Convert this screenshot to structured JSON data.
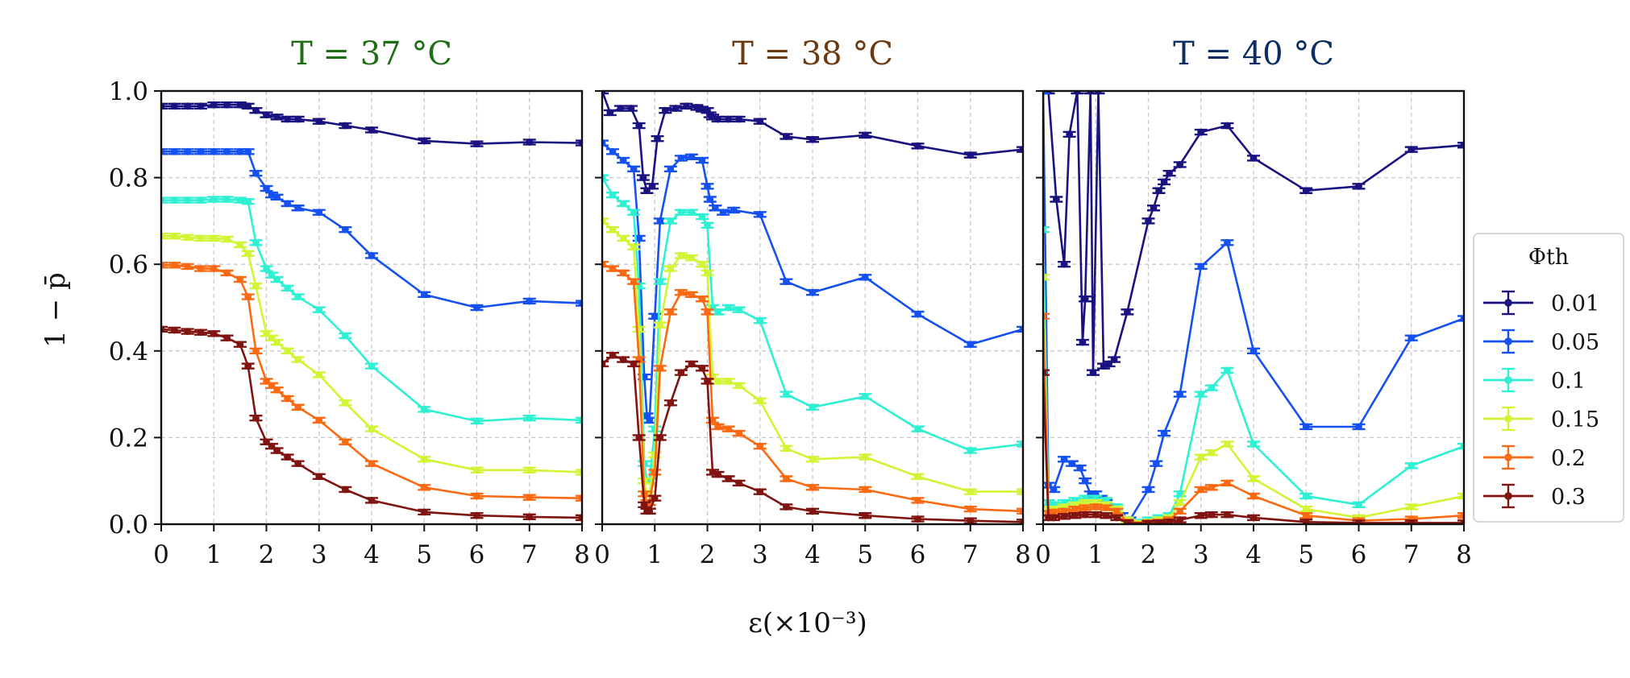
{
  "colors": {
    "0.01": "#1a1280",
    "0.05": "#1550f0",
    "0.1": "#2ef0d2",
    "0.15": "#d0f535",
    "0.2": "#fb6a12",
    "0.3": "#801410"
  },
  "chart_data": {
    "type": "line",
    "shared_ylabel": "1 − p̄",
    "shared_xlabel": "ε(×10⁻³)",
    "xlim": [
      0,
      8
    ],
    "ylim": [
      0,
      1
    ],
    "xticks": [
      "0",
      "1",
      "2",
      "3",
      "4",
      "5",
      "6",
      "7",
      "8"
    ],
    "yticks": [
      "0.0",
      "0.2",
      "0.4",
      "0.6",
      "0.8",
      "1.0"
    ],
    "grid": true,
    "legend": {
      "title": "Φth",
      "placement": "right",
      "entries": [
        "0.01",
        "0.05",
        "0.1",
        "0.15",
        "0.2",
        "0.3"
      ]
    },
    "panels": [
      {
        "title": "T = 37 °C",
        "title_color": "#1e6e14",
        "series": [
          {
            "name": "0.01",
            "x": [
              0,
              0.25,
              0.5,
              0.75,
              1,
              1.25,
              1.5,
              1.65,
              1.8,
              2,
              2.2,
              2.4,
              2.6,
              3,
              3.5,
              4,
              5,
              6,
              7,
              8
            ],
            "y": [
              0.965,
              0.965,
              0.965,
              0.965,
              0.968,
              0.968,
              0.968,
              0.965,
              0.955,
              0.945,
              0.94,
              0.935,
              0.935,
              0.93,
              0.92,
              0.91,
              0.885,
              0.878,
              0.882,
              0.88
            ]
          },
          {
            "name": "0.05",
            "x": [
              0,
              0.25,
              0.5,
              0.75,
              1,
              1.25,
              1.5,
              1.65,
              1.8,
              2,
              2.1,
              2.2,
              2.4,
              2.6,
              3,
              3.5,
              4,
              5,
              6,
              7,
              8
            ],
            "y": [
              0.86,
              0.86,
              0.86,
              0.86,
              0.86,
              0.86,
              0.86,
              0.86,
              0.81,
              0.775,
              0.76,
              0.755,
              0.74,
              0.73,
              0.72,
              0.68,
              0.62,
              0.53,
              0.5,
              0.515,
              0.51
            ]
          },
          {
            "name": "0.1",
            "x": [
              0,
              0.25,
              0.5,
              0.75,
              1,
              1.25,
              1.5,
              1.65,
              1.8,
              2,
              2.1,
              2.2,
              2.4,
              2.6,
              3,
              3.5,
              4,
              5,
              6,
              7,
              8
            ],
            "y": [
              0.748,
              0.748,
              0.748,
              0.748,
              0.75,
              0.75,
              0.748,
              0.745,
              0.65,
              0.59,
              0.575,
              0.565,
              0.545,
              0.525,
              0.495,
              0.435,
              0.365,
              0.265,
              0.238,
              0.245,
              0.24
            ]
          },
          {
            "name": "0.15",
            "x": [
              0,
              0.25,
              0.5,
              0.75,
              1,
              1.25,
              1.5,
              1.65,
              1.8,
              2,
              2.1,
              2.2,
              2.4,
              2.6,
              3,
              3.5,
              4,
              5,
              6,
              7,
              8
            ],
            "y": [
              0.665,
              0.665,
              0.662,
              0.66,
              0.66,
              0.658,
              0.645,
              0.625,
              0.55,
              0.44,
              0.43,
              0.42,
              0.4,
              0.38,
              0.345,
              0.28,
              0.22,
              0.15,
              0.125,
              0.125,
              0.12
            ]
          },
          {
            "name": "0.2",
            "x": [
              0,
              0.25,
              0.5,
              0.75,
              1,
              1.25,
              1.5,
              1.65,
              1.8,
              2,
              2.1,
              2.2,
              2.4,
              2.6,
              3,
              3.5,
              4,
              5,
              6,
              7,
              8
            ],
            "y": [
              0.598,
              0.598,
              0.595,
              0.59,
              0.59,
              0.58,
              0.565,
              0.525,
              0.4,
              0.33,
              0.32,
              0.31,
              0.29,
              0.27,
              0.24,
              0.19,
              0.14,
              0.085,
              0.065,
              0.062,
              0.06
            ]
          },
          {
            "name": "0.3",
            "x": [
              0,
              0.25,
              0.5,
              0.75,
              1,
              1.25,
              1.5,
              1.65,
              1.8,
              2,
              2.1,
              2.2,
              2.4,
              2.6,
              3,
              3.5,
              4,
              5,
              6,
              7,
              8
            ],
            "y": [
              0.45,
              0.448,
              0.445,
              0.443,
              0.44,
              0.43,
              0.415,
              0.365,
              0.245,
              0.19,
              0.18,
              0.17,
              0.155,
              0.14,
              0.11,
              0.08,
              0.055,
              0.028,
              0.02,
              0.017,
              0.015
            ]
          }
        ]
      },
      {
        "title": "T = 38 °C",
        "title_color": "#6b3a10",
        "series": [
          {
            "name": "0.01",
            "x": [
              0,
              0.15,
              0.35,
              0.55,
              0.7,
              0.78,
              0.85,
              0.95,
              1.05,
              1.2,
              1.4,
              1.6,
              1.8,
              1.9,
              2,
              2.05,
              2.1,
              2.2,
              2.4,
              2.6,
              3,
              3.5,
              4,
              5,
              6,
              7,
              8
            ],
            "y": [
              1.0,
              0.95,
              0.96,
              0.96,
              0.92,
              0.8,
              0.77,
              0.78,
              0.89,
              0.955,
              0.96,
              0.965,
              0.962,
              0.958,
              0.955,
              0.945,
              0.94,
              0.935,
              0.935,
              0.935,
              0.93,
              0.895,
              0.888,
              0.898,
              0.873,
              0.852,
              0.865
            ]
          },
          {
            "name": "0.05",
            "x": [
              0,
              0.2,
              0.4,
              0.6,
              0.7,
              0.8,
              0.85,
              0.9,
              1.0,
              1.1,
              1.3,
              1.5,
              1.7,
              1.9,
              2.0,
              2.05,
              2.15,
              2.3,
              2.5,
              3,
              3.5,
              4,
              5,
              6,
              7,
              8
            ],
            "y": [
              0.88,
              0.86,
              0.84,
              0.82,
              0.66,
              0.34,
              0.25,
              0.24,
              0.48,
              0.7,
              0.82,
              0.845,
              0.848,
              0.84,
              0.78,
              0.75,
              0.73,
              0.72,
              0.725,
              0.715,
              0.56,
              0.535,
              0.57,
              0.485,
              0.415,
              0.45
            ]
          },
          {
            "name": "0.1",
            "x": [
              0,
              0.2,
              0.4,
              0.6,
              0.7,
              0.8,
              0.85,
              0.9,
              1.0,
              1.1,
              1.3,
              1.5,
              1.7,
              1.9,
              2.0,
              2.1,
              2.2,
              2.4,
              2.6,
              3,
              3.5,
              4,
              5,
              6,
              7,
              8
            ],
            "y": [
              0.8,
              0.76,
              0.74,
              0.72,
              0.55,
              0.14,
              0.1,
              0.1,
              0.22,
              0.56,
              0.7,
              0.72,
              0.72,
              0.71,
              0.69,
              0.5,
              0.49,
              0.5,
              0.495,
              0.47,
              0.3,
              0.27,
              0.295,
              0.22,
              0.17,
              0.185
            ]
          },
          {
            "name": "0.15",
            "x": [
              0,
              0.2,
              0.4,
              0.6,
              0.7,
              0.8,
              0.85,
              0.9,
              1.0,
              1.1,
              1.3,
              1.5,
              1.7,
              1.9,
              2.0,
              2.1,
              2.2,
              2.4,
              2.6,
              3,
              3.5,
              4,
              5,
              6,
              7,
              8
            ],
            "y": [
              0.7,
              0.68,
              0.66,
              0.64,
              0.45,
              0.1,
              0.07,
              0.07,
              0.16,
              0.46,
              0.59,
              0.62,
              0.615,
              0.6,
              0.58,
              0.34,
              0.33,
              0.33,
              0.32,
              0.285,
              0.175,
              0.15,
              0.155,
              0.11,
              0.075,
              0.075
            ]
          },
          {
            "name": "0.2",
            "x": [
              0,
              0.2,
              0.4,
              0.6,
              0.7,
              0.8,
              0.85,
              0.9,
              1.0,
              1.1,
              1.3,
              1.5,
              1.7,
              1.9,
              2.0,
              2.1,
              2.2,
              2.4,
              2.6,
              3,
              3.5,
              4,
              5,
              6,
              7,
              8
            ],
            "y": [
              0.6,
              0.59,
              0.58,
              0.56,
              0.38,
              0.07,
              0.05,
              0.05,
              0.12,
              0.36,
              0.49,
              0.535,
              0.53,
              0.52,
              0.49,
              0.24,
              0.225,
              0.22,
              0.21,
              0.18,
              0.105,
              0.085,
              0.08,
              0.055,
              0.035,
              0.03
            ]
          },
          {
            "name": "0.3",
            "x": [
              0,
              0.2,
              0.4,
              0.6,
              0.7,
              0.8,
              0.85,
              0.9,
              1.0,
              1.1,
              1.3,
              1.5,
              1.7,
              1.9,
              2.0,
              2.1,
              2.2,
              2.4,
              2.6,
              3,
              3.5,
              4,
              5,
              6,
              7,
              8
            ],
            "y": [
              0.37,
              0.39,
              0.38,
              0.37,
              0.2,
              0.045,
              0.03,
              0.03,
              0.06,
              0.2,
              0.28,
              0.35,
              0.37,
              0.36,
              0.33,
              0.12,
              0.115,
              0.105,
              0.095,
              0.075,
              0.04,
              0.03,
              0.02,
              0.012,
              0.008,
              0.005
            ]
          }
        ]
      },
      {
        "title": "T = 40 °C",
        "title_color": "#0a2d64",
        "series": [
          {
            "name": "0.01",
            "x": [
              0,
              0.1,
              0.25,
              0.4,
              0.5,
              0.65,
              0.75,
              0.8,
              0.9,
              0.95,
              1.05,
              1.15,
              1.25,
              1.35,
              1.6,
              2,
              2.1,
              2.2,
              2.3,
              2.4,
              2.6,
              3,
              3.5,
              4,
              5,
              6,
              7,
              8
            ],
            "y": [
              1.0,
              1.0,
              0.75,
              0.6,
              0.9,
              1.0,
              0.42,
              0.52,
              1.0,
              0.35,
              1.0,
              0.365,
              0.37,
              0.38,
              0.49,
              0.7,
              0.73,
              0.77,
              0.79,
              0.81,
              0.83,
              0.905,
              0.92,
              0.845,
              0.77,
              0.78,
              0.865,
              0.875
            ]
          },
          {
            "name": "0.05",
            "x": [
              0,
              0.1,
              0.2,
              0.4,
              0.55,
              0.7,
              0.8,
              0.9,
              1.0,
              1.1,
              1.2,
              1.35,
              1.5,
              1.65,
              2,
              2.15,
              2.3,
              2.6,
              3,
              3.5,
              4,
              5,
              6,
              7,
              8
            ],
            "y": [
              1.0,
              0.09,
              0.08,
              0.15,
              0.14,
              0.13,
              0.1,
              0.07,
              0.07,
              0.06,
              0.05,
              0.04,
              0.02,
              0.01,
              0.08,
              0.14,
              0.21,
              0.3,
              0.595,
              0.65,
              0.4,
              0.225,
              0.225,
              0.43,
              0.475
            ]
          },
          {
            "name": "0.1",
            "x": [
              0,
              0.1,
              0.2,
              0.4,
              0.6,
              0.8,
              1,
              1.2,
              1.4,
              1.6,
              2,
              2.2,
              2.4,
              2.6,
              3,
              3.2,
              3.5,
              4,
              5,
              6,
              7,
              8
            ],
            "y": [
              0.68,
              0.05,
              0.045,
              0.05,
              0.055,
              0.06,
              0.06,
              0.055,
              0.04,
              0.01,
              0.01,
              0.015,
              0.02,
              0.07,
              0.3,
              0.315,
              0.355,
              0.185,
              0.065,
              0.045,
              0.135,
              0.18
            ]
          },
          {
            "name": "0.15",
            "x": [
              0,
              0.1,
              0.2,
              0.4,
              0.6,
              0.8,
              1,
              1.2,
              1.4,
              1.6,
              2,
              2.2,
              2.4,
              2.6,
              3,
              3.2,
              3.5,
              4,
              5,
              6,
              7,
              8
            ],
            "y": [
              0.57,
              0.035,
              0.035,
              0.04,
              0.045,
              0.05,
              0.05,
              0.045,
              0.035,
              0.01,
              0.005,
              0.01,
              0.015,
              0.05,
              0.155,
              0.165,
              0.185,
              0.105,
              0.035,
              0.015,
              0.04,
              0.065
            ]
          },
          {
            "name": "0.2",
            "x": [
              0,
              0.1,
              0.2,
              0.4,
              0.6,
              0.8,
              1,
              1.2,
              1.4,
              1.6,
              2,
              2.2,
              2.4,
              2.6,
              3,
              3.2,
              3.5,
              4,
              5,
              6,
              7,
              8
            ],
            "y": [
              0.48,
              0.025,
              0.028,
              0.03,
              0.035,
              0.038,
              0.04,
              0.038,
              0.03,
              0.005,
              0.003,
              0.005,
              0.01,
              0.03,
              0.08,
              0.085,
              0.095,
              0.065,
              0.02,
              0.008,
              0.012,
              0.02
            ]
          },
          {
            "name": "0.3",
            "x": [
              0,
              0.1,
              0.2,
              0.4,
              0.6,
              0.8,
              1,
              1.2,
              1.4,
              1.6,
              2,
              2.2,
              2.4,
              2.6,
              3,
              3.2,
              3.5,
              4,
              5,
              6,
              7,
              8
            ],
            "y": [
              0.35,
              0.015,
              0.015,
              0.018,
              0.02,
              0.022,
              0.022,
              0.02,
              0.015,
              0.003,
              0.002,
              0.003,
              0.005,
              0.01,
              0.02,
              0.022,
              0.022,
              0.015,
              0.005,
              0.003,
              0.003,
              0.003
            ]
          }
        ]
      }
    ]
  }
}
